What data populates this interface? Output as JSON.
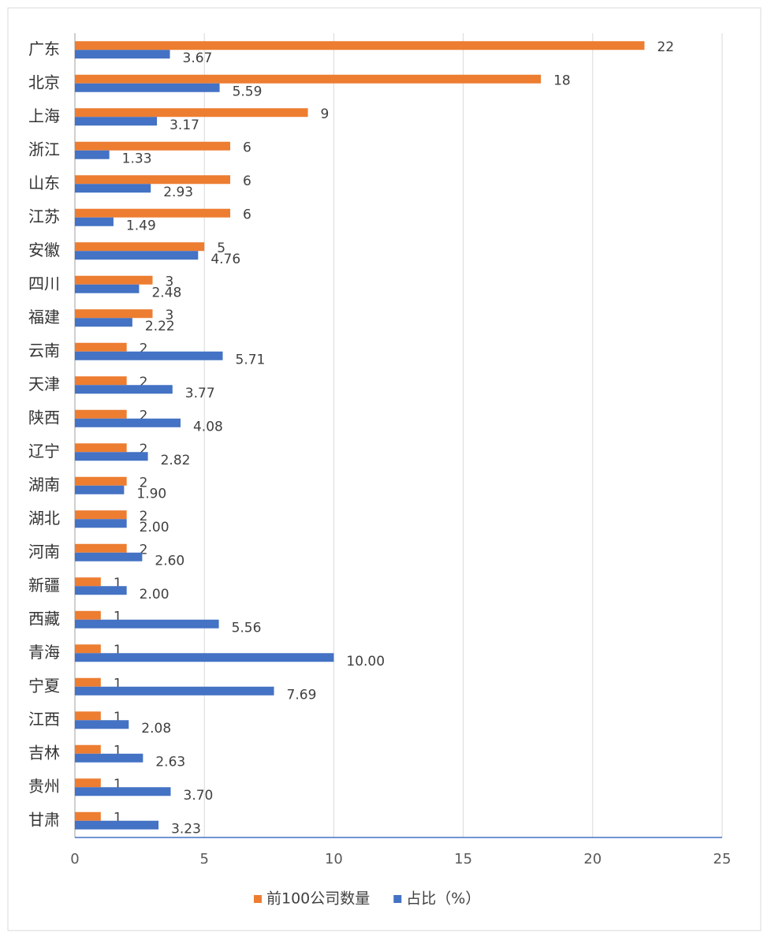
{
  "chart_data": {
    "type": "bar",
    "orientation": "horizontal",
    "categories": [
      "广东",
      "北京",
      "上海",
      "浙江",
      "山东",
      "江苏",
      "安徽",
      "四川",
      "福建",
      "云南",
      "天津",
      "陕西",
      "辽宁",
      "湖南",
      "湖北",
      "河南",
      "新疆",
      "西藏",
      "青海",
      "宁夏",
      "江西",
      "吉林",
      "贵州",
      "甘肃"
    ],
    "series": [
      {
        "name": "前100公司数量",
        "color": "#ed7d31",
        "values": [
          22,
          18,
          9,
          6,
          6,
          6,
          5,
          3,
          3,
          2,
          2,
          2,
          2,
          2,
          2,
          2,
          1,
          1,
          1,
          1,
          1,
          1,
          1,
          1
        ]
      },
      {
        "name": "占比（%）",
        "color": "#4472c4",
        "values": [
          3.67,
          5.59,
          3.17,
          1.33,
          2.93,
          1.49,
          4.76,
          2.48,
          2.22,
          5.71,
          3.77,
          4.08,
          2.82,
          1.9,
          2,
          2.6,
          2,
          5.56,
          10,
          7.69,
          2.08,
          2.63,
          3.7,
          3.23
        ],
        "value_labels": [
          "3.67",
          "5.59",
          "3.17",
          "1.33",
          "2.93",
          "1.49",
          "4.76",
          "2.48",
          "2.22",
          "5.71",
          "3.77",
          "4.08",
          "2.82",
          "1.90",
          "2.00",
          "2.60",
          "2.00",
          "5.56",
          "10.00",
          "7.69",
          "2.08",
          "2.63",
          "3.70",
          "3.23"
        ]
      }
    ],
    "xlim": [
      0,
      25
    ],
    "xticks": [
      0,
      5,
      10,
      15,
      20,
      25
    ],
    "grid": true,
    "legend": "bottom"
  }
}
